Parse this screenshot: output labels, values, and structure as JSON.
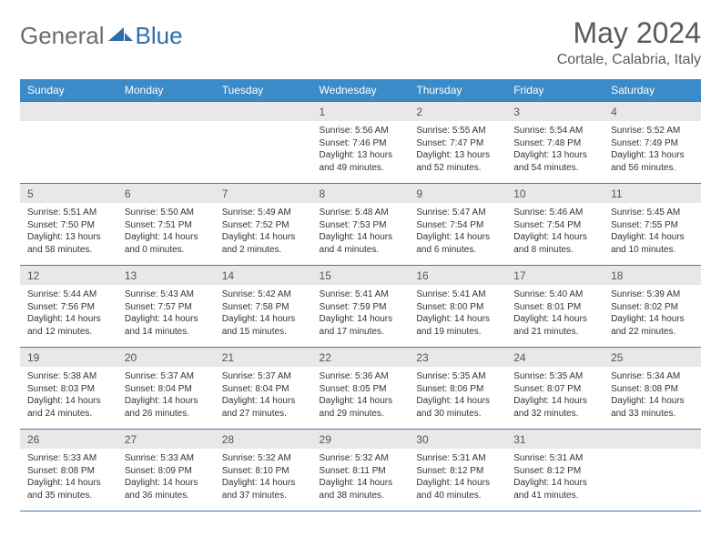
{
  "brand": {
    "general": "General",
    "blue": "Blue"
  },
  "title": "May 2024",
  "location": "Cortale, Calabria, Italy",
  "header_bg": "#3b8bc9",
  "days": [
    "Sunday",
    "Monday",
    "Tuesday",
    "Wednesday",
    "Thursday",
    "Friday",
    "Saturday"
  ],
  "weeks": [
    [
      null,
      null,
      null,
      {
        "n": "1",
        "sr": "5:56 AM",
        "ss": "7:46 PM",
        "dl": "13 hours and 49 minutes."
      },
      {
        "n": "2",
        "sr": "5:55 AM",
        "ss": "7:47 PM",
        "dl": "13 hours and 52 minutes."
      },
      {
        "n": "3",
        "sr": "5:54 AM",
        "ss": "7:48 PM",
        "dl": "13 hours and 54 minutes."
      },
      {
        "n": "4",
        "sr": "5:52 AM",
        "ss": "7:49 PM",
        "dl": "13 hours and 56 minutes."
      }
    ],
    [
      {
        "n": "5",
        "sr": "5:51 AM",
        "ss": "7:50 PM",
        "dl": "13 hours and 58 minutes."
      },
      {
        "n": "6",
        "sr": "5:50 AM",
        "ss": "7:51 PM",
        "dl": "14 hours and 0 minutes."
      },
      {
        "n": "7",
        "sr": "5:49 AM",
        "ss": "7:52 PM",
        "dl": "14 hours and 2 minutes."
      },
      {
        "n": "8",
        "sr": "5:48 AM",
        "ss": "7:53 PM",
        "dl": "14 hours and 4 minutes."
      },
      {
        "n": "9",
        "sr": "5:47 AM",
        "ss": "7:54 PM",
        "dl": "14 hours and 6 minutes."
      },
      {
        "n": "10",
        "sr": "5:46 AM",
        "ss": "7:54 PM",
        "dl": "14 hours and 8 minutes."
      },
      {
        "n": "11",
        "sr": "5:45 AM",
        "ss": "7:55 PM",
        "dl": "14 hours and 10 minutes."
      }
    ],
    [
      {
        "n": "12",
        "sr": "5:44 AM",
        "ss": "7:56 PM",
        "dl": "14 hours and 12 minutes."
      },
      {
        "n": "13",
        "sr": "5:43 AM",
        "ss": "7:57 PM",
        "dl": "14 hours and 14 minutes."
      },
      {
        "n": "14",
        "sr": "5:42 AM",
        "ss": "7:58 PM",
        "dl": "14 hours and 15 minutes."
      },
      {
        "n": "15",
        "sr": "5:41 AM",
        "ss": "7:59 PM",
        "dl": "14 hours and 17 minutes."
      },
      {
        "n": "16",
        "sr": "5:41 AM",
        "ss": "8:00 PM",
        "dl": "14 hours and 19 minutes."
      },
      {
        "n": "17",
        "sr": "5:40 AM",
        "ss": "8:01 PM",
        "dl": "14 hours and 21 minutes."
      },
      {
        "n": "18",
        "sr": "5:39 AM",
        "ss": "8:02 PM",
        "dl": "14 hours and 22 minutes."
      }
    ],
    [
      {
        "n": "19",
        "sr": "5:38 AM",
        "ss": "8:03 PM",
        "dl": "14 hours and 24 minutes."
      },
      {
        "n": "20",
        "sr": "5:37 AM",
        "ss": "8:04 PM",
        "dl": "14 hours and 26 minutes."
      },
      {
        "n": "21",
        "sr": "5:37 AM",
        "ss": "8:04 PM",
        "dl": "14 hours and 27 minutes."
      },
      {
        "n": "22",
        "sr": "5:36 AM",
        "ss": "8:05 PM",
        "dl": "14 hours and 29 minutes."
      },
      {
        "n": "23",
        "sr": "5:35 AM",
        "ss": "8:06 PM",
        "dl": "14 hours and 30 minutes."
      },
      {
        "n": "24",
        "sr": "5:35 AM",
        "ss": "8:07 PM",
        "dl": "14 hours and 32 minutes."
      },
      {
        "n": "25",
        "sr": "5:34 AM",
        "ss": "8:08 PM",
        "dl": "14 hours and 33 minutes."
      }
    ],
    [
      {
        "n": "26",
        "sr": "5:33 AM",
        "ss": "8:08 PM",
        "dl": "14 hours and 35 minutes."
      },
      {
        "n": "27",
        "sr": "5:33 AM",
        "ss": "8:09 PM",
        "dl": "14 hours and 36 minutes."
      },
      {
        "n": "28",
        "sr": "5:32 AM",
        "ss": "8:10 PM",
        "dl": "14 hours and 37 minutes."
      },
      {
        "n": "29",
        "sr": "5:32 AM",
        "ss": "8:11 PM",
        "dl": "14 hours and 38 minutes."
      },
      {
        "n": "30",
        "sr": "5:31 AM",
        "ss": "8:12 PM",
        "dl": "14 hours and 40 minutes."
      },
      {
        "n": "31",
        "sr": "5:31 AM",
        "ss": "8:12 PM",
        "dl": "14 hours and 41 minutes."
      },
      null
    ]
  ],
  "labels": {
    "sunrise": "Sunrise:",
    "sunset": "Sunset:",
    "daylight": "Daylight:"
  }
}
